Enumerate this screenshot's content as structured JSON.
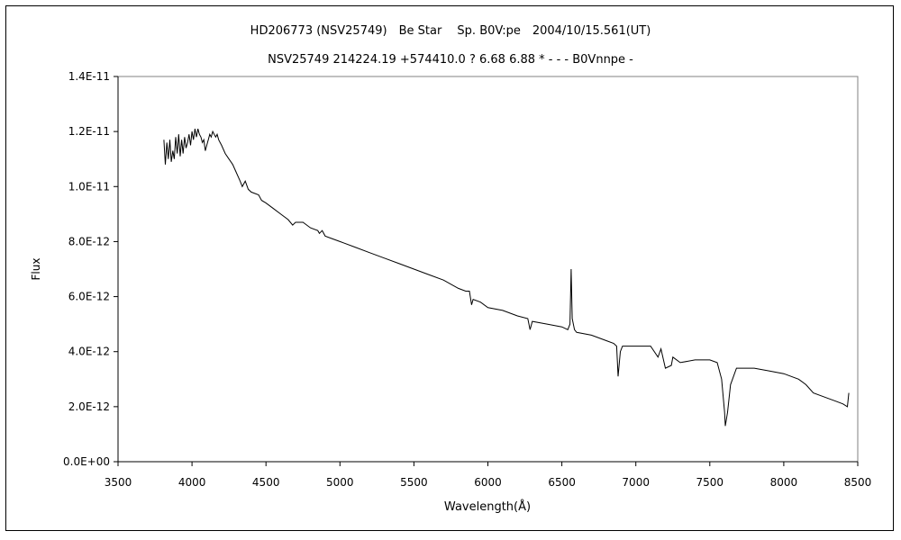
{
  "chart_data": {
    "type": "line",
    "title": "HD206773 (NSV25749)　Be Star　 Sp. B0V:pe　2004/10/15.561(UT)",
    "subtitle": "NSV25749 214224.19 +574410.0 ? 6.68 6.88 * - - - B0Vnnpe -",
    "xlabel": "Wavelength(Å)",
    "ylabel": "Flux",
    "xlim": [
      3500,
      8500
    ],
    "ylim": [
      0,
      1.4e-11
    ],
    "x_ticks": [
      "3500",
      "4000",
      "4500",
      "5000",
      "5500",
      "6000",
      "6500",
      "7000",
      "7500",
      "8000",
      "8500"
    ],
    "y_ticks": [
      "0.0E+00",
      "2.0E-12",
      "4.0E-12",
      "6.0E-12",
      "8.0E-12",
      "1.0E-11",
      "1.2E-11",
      "1.4E-11"
    ],
    "grid": false,
    "legend": "none",
    "series": [
      {
        "color": "#000000",
        "x": [
          3810,
          3820,
          3830,
          3840,
          3850,
          3860,
          3870,
          3880,
          3890,
          3900,
          3910,
          3920,
          3930,
          3940,
          3950,
          3960,
          3970,
          3980,
          3990,
          4000,
          4010,
          4020,
          4030,
          4040,
          4050,
          4060,
          4070,
          4080,
          4090,
          4100,
          4110,
          4120,
          4130,
          4140,
          4150,
          4160,
          4170,
          4180,
          4190,
          4200,
          4225,
          4250,
          4275,
          4300,
          4325,
          4340,
          4360,
          4380,
          4400,
          4450,
          4470,
          4500,
          4550,
          4600,
          4650,
          4680,
          4700,
          4750,
          4800,
          4850,
          4861,
          4880,
          4900,
          4950,
          5000,
          5100,
          5200,
          5300,
          5400,
          5500,
          5600,
          5700,
          5800,
          5850,
          5875,
          5890,
          5900,
          5950,
          6000,
          6100,
          6200,
          6270,
          6285,
          6300,
          6400,
          6500,
          6540,
          6555,
          6563,
          6570,
          6585,
          6600,
          6700,
          6800,
          6850,
          6870,
          6880,
          6895,
          6910,
          6950,
          7000,
          7050,
          7100,
          7150,
          7170,
          7200,
          7240,
          7250,
          7300,
          7400,
          7500,
          7550,
          7580,
          7600,
          7605,
          7620,
          7640,
          7680,
          7700,
          7800,
          7900,
          8000,
          8100,
          8150,
          8200,
          8300,
          8350,
          8400,
          8430,
          8440
        ],
        "y": [
          1.17e-11,
          1.08e-11,
          1.16e-11,
          1.1e-11,
          1.17e-11,
          1.09e-11,
          1.13e-11,
          1.1e-11,
          1.18e-11,
          1.12e-11,
          1.19e-11,
          1.11e-11,
          1.17e-11,
          1.12e-11,
          1.18e-11,
          1.14e-11,
          1.16e-11,
          1.19e-11,
          1.15e-11,
          1.2e-11,
          1.17e-11,
          1.21e-11,
          1.18e-11,
          1.21e-11,
          1.19e-11,
          1.18e-11,
          1.16e-11,
          1.17e-11,
          1.13e-11,
          1.15e-11,
          1.17e-11,
          1.19e-11,
          1.18e-11,
          1.2e-11,
          1.19e-11,
          1.18e-11,
          1.19e-11,
          1.17e-11,
          1.16e-11,
          1.15e-11,
          1.12e-11,
          1.1e-11,
          1.08e-11,
          1.05e-11,
          1.02e-11,
          1e-11,
          1.02e-11,
          9.9e-12,
          9.8e-12,
          9.7e-12,
          9.5e-12,
          9.4e-12,
          9.2e-12,
          9e-12,
          8.8e-12,
          8.6e-12,
          8.7e-12,
          8.7e-12,
          8.5e-12,
          8.4e-12,
          8.3e-12,
          8.4e-12,
          8.2e-12,
          8.1e-12,
          8e-12,
          7.8e-12,
          7.6e-12,
          7.4e-12,
          7.2e-12,
          7e-12,
          6.8e-12,
          6.6e-12,
          6.3e-12,
          6.2e-12,
          6.2e-12,
          5.7e-12,
          5.9e-12,
          5.8e-12,
          5.6e-12,
          5.5e-12,
          5.3e-12,
          5.2e-12,
          4.8e-12,
          5.1e-12,
          5e-12,
          4.9e-12,
          4.8e-12,
          5e-12,
          7e-12,
          5.2e-12,
          4.8e-12,
          4.7e-12,
          4.6e-12,
          4.4e-12,
          4.3e-12,
          4.2e-12,
          3.1e-12,
          4e-12,
          4.2e-12,
          4.2e-12,
          4.2e-12,
          4.2e-12,
          4.2e-12,
          3.8e-12,
          4.1e-12,
          3.4e-12,
          3.5e-12,
          3.8e-12,
          3.6e-12,
          3.7e-12,
          3.7e-12,
          3.6e-12,
          3e-12,
          1.8e-12,
          1.3e-12,
          1.8e-12,
          2.8e-12,
          3.4e-12,
          3.4e-12,
          3.4e-12,
          3.3e-12,
          3.2e-12,
          3e-12,
          2.8e-12,
          2.5e-12,
          2.3e-12,
          2.2e-12,
          2.1e-12,
          2e-12,
          2.5e-12
        ]
      }
    ]
  }
}
